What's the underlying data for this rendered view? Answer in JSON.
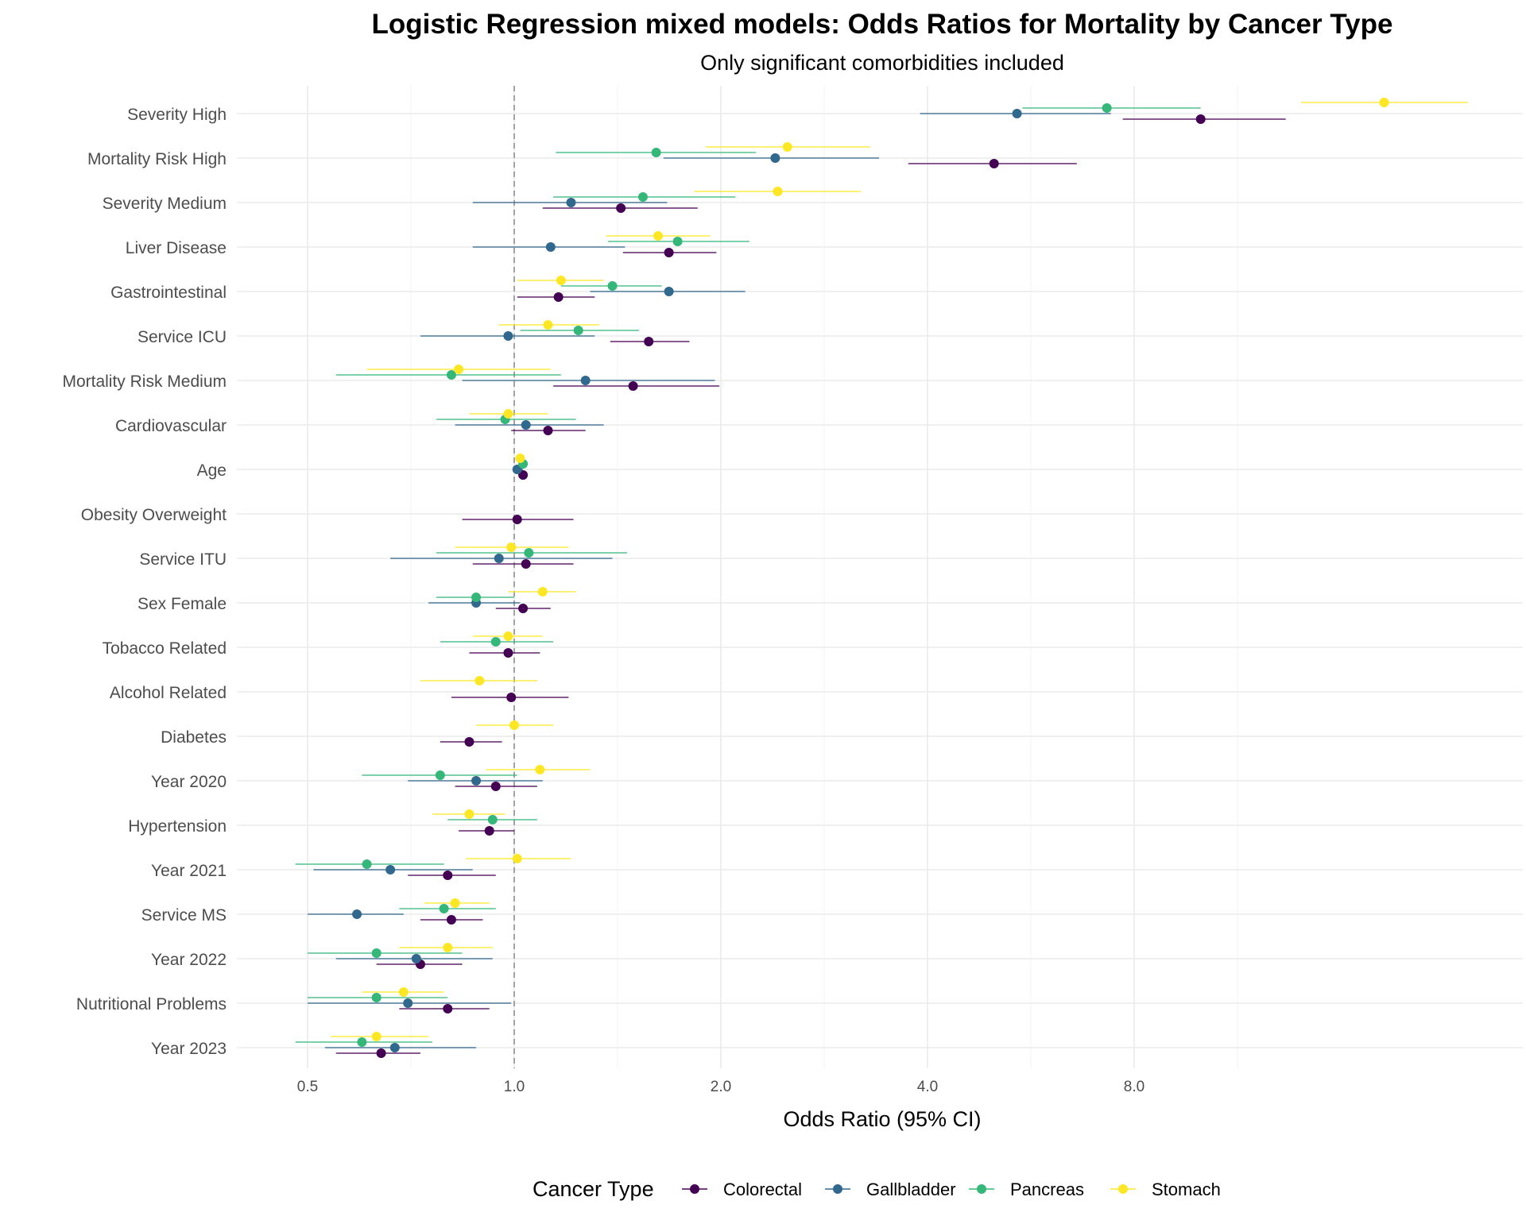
{
  "chart_data": {
    "type": "scatter",
    "title": "Logistic Regression mixed models: Odds Ratios for Mortality by Cancer Type",
    "subtitle": "Only significant comorbidities included",
    "xlabel": "Odds Ratio (95% CI)",
    "ylabel": "",
    "x_scale": "log2",
    "xlim": [
      0.42,
      28
    ],
    "x_ticks": [
      0.5,
      1.0,
      2.0,
      4.0,
      8.0
    ],
    "x_tick_labels": [
      "0.5",
      "1.0",
      "2.0",
      "4.0",
      "8.0"
    ],
    "reference_line": 1.0,
    "grid": true,
    "legend": {
      "title": "Cancer Type",
      "position": "bottom"
    },
    "categories": [
      "Severity High",
      "Mortality Risk High",
      "Severity Medium",
      "Liver Disease",
      "Gastrointestinal",
      "Service ICU",
      "Mortality Risk Medium",
      "Cardiovascular",
      "Age",
      "Obesity Overweight",
      "Service ITU",
      "Sex Female",
      "Tobacco Related",
      "Alcohol Related",
      "Diabetes",
      "Year 2020",
      "Hypertension",
      "Year 2021",
      "Service MS",
      "Year 2022",
      "Nutritional Problems",
      "Year 2023"
    ],
    "series": [
      {
        "name": "Colorectal",
        "color": "#440154",
        "points": [
          {
            "category": "Severity High",
            "or": 10.0,
            "lo": 7.7,
            "hi": 13.3
          },
          {
            "category": "Mortality Risk High",
            "or": 5.0,
            "lo": 3.75,
            "hi": 6.6
          },
          {
            "category": "Severity Medium",
            "or": 1.43,
            "lo": 1.1,
            "hi": 1.85
          },
          {
            "category": "Liver Disease",
            "or": 1.68,
            "lo": 1.44,
            "hi": 1.97
          },
          {
            "category": "Gastrointestinal",
            "or": 1.16,
            "lo": 1.01,
            "hi": 1.31
          },
          {
            "category": "Service ICU",
            "or": 1.57,
            "lo": 1.38,
            "hi": 1.8
          },
          {
            "category": "Mortality Risk Medium",
            "or": 1.49,
            "lo": 1.14,
            "hi": 1.99
          },
          {
            "category": "Cardiovascular",
            "or": 1.12,
            "lo": 0.99,
            "hi": 1.27
          },
          {
            "category": "Age",
            "or": 1.03,
            "lo": 1.02,
            "hi": 1.04
          },
          {
            "category": "Obesity Overweight",
            "or": 1.01,
            "lo": 0.84,
            "hi": 1.22
          },
          {
            "category": "Service ITU",
            "or": 1.04,
            "lo": 0.87,
            "hi": 1.22
          },
          {
            "category": "Sex Female",
            "or": 1.03,
            "lo": 0.94,
            "hi": 1.13
          },
          {
            "category": "Tobacco Related",
            "or": 0.98,
            "lo": 0.86,
            "hi": 1.09
          },
          {
            "category": "Alcohol Related",
            "or": 0.99,
            "lo": 0.81,
            "hi": 1.2
          },
          {
            "category": "Diabetes",
            "or": 0.86,
            "lo": 0.78,
            "hi": 0.96
          },
          {
            "category": "Year 2020",
            "or": 0.94,
            "lo": 0.82,
            "hi": 1.08
          },
          {
            "category": "Hypertension",
            "or": 0.92,
            "lo": 0.83,
            "hi": 1.0
          },
          {
            "category": "Year 2021",
            "or": 0.8,
            "lo": 0.7,
            "hi": 0.94
          },
          {
            "category": "Service MS",
            "or": 0.81,
            "lo": 0.73,
            "hi": 0.9
          },
          {
            "category": "Year 2022",
            "or": 0.73,
            "lo": 0.63,
            "hi": 0.84
          },
          {
            "category": "Nutritional Problems",
            "or": 0.8,
            "lo": 0.68,
            "hi": 0.92
          },
          {
            "category": "Year 2023",
            "or": 0.64,
            "lo": 0.55,
            "hi": 0.73
          }
        ]
      },
      {
        "name": "Gallbladder",
        "color": "#31688e",
        "points": [
          {
            "category": "Severity High",
            "or": 5.4,
            "lo": 3.9,
            "hi": 7.4
          },
          {
            "category": "Mortality Risk High",
            "or": 2.4,
            "lo": 1.65,
            "hi": 3.4
          },
          {
            "category": "Severity Medium",
            "or": 1.21,
            "lo": 0.87,
            "hi": 1.67
          },
          {
            "category": "Liver Disease",
            "or": 1.13,
            "lo": 0.87,
            "hi": 1.45
          },
          {
            "category": "Gastrointestinal",
            "or": 1.68,
            "lo": 1.29,
            "hi": 2.17
          },
          {
            "category": "Service ICU",
            "or": 0.98,
            "lo": 0.73,
            "hi": 1.31
          },
          {
            "category": "Mortality Risk Medium",
            "or": 1.27,
            "lo": 0.84,
            "hi": 1.96
          },
          {
            "category": "Cardiovascular",
            "or": 1.04,
            "lo": 0.82,
            "hi": 1.35
          },
          {
            "category": "Age",
            "or": 1.01,
            "lo": 1.0,
            "hi": 1.03
          },
          {
            "category": "Service ITU",
            "or": 0.95,
            "lo": 0.66,
            "hi": 1.39
          },
          {
            "category": "Sex Female",
            "or": 0.88,
            "lo": 0.75,
            "hi": 1.02
          },
          {
            "category": "Year 2020",
            "or": 0.88,
            "lo": 0.7,
            "hi": 1.1
          },
          {
            "category": "Year 2021",
            "or": 0.66,
            "lo": 0.51,
            "hi": 0.87
          },
          {
            "category": "Service MS",
            "or": 0.59,
            "lo": 0.5,
            "hi": 0.69
          },
          {
            "category": "Year 2022",
            "or": 0.72,
            "lo": 0.55,
            "hi": 0.93
          },
          {
            "category": "Nutritional Problems",
            "or": 0.7,
            "lo": 0.5,
            "hi": 0.99
          },
          {
            "category": "Year 2023",
            "or": 0.67,
            "lo": 0.53,
            "hi": 0.88
          }
        ]
      },
      {
        "name": "Pancreas",
        "color": "#35b779",
        "points": [
          {
            "category": "Severity High",
            "or": 7.3,
            "lo": 5.5,
            "hi": 10.0
          },
          {
            "category": "Mortality Risk High",
            "or": 1.61,
            "lo": 1.15,
            "hi": 2.25
          },
          {
            "category": "Severity Medium",
            "or": 1.54,
            "lo": 1.14,
            "hi": 2.1
          },
          {
            "category": "Liver Disease",
            "or": 1.73,
            "lo": 1.37,
            "hi": 2.2
          },
          {
            "category": "Gastrointestinal",
            "or": 1.39,
            "lo": 1.17,
            "hi": 1.64
          },
          {
            "category": "Service ICU",
            "or": 1.24,
            "lo": 1.02,
            "hi": 1.52
          },
          {
            "category": "Mortality Risk Medium",
            "or": 0.81,
            "lo": 0.55,
            "hi": 1.17
          },
          {
            "category": "Cardiovascular",
            "or": 0.97,
            "lo": 0.77,
            "hi": 1.23
          },
          {
            "category": "Age",
            "or": 1.03,
            "lo": 1.02,
            "hi": 1.04
          },
          {
            "category": "Service ITU",
            "or": 1.05,
            "lo": 0.77,
            "hi": 1.46
          },
          {
            "category": "Sex Female",
            "or": 0.88,
            "lo": 0.77,
            "hi": 1.0
          },
          {
            "category": "Tobacco Related",
            "or": 0.94,
            "lo": 0.78,
            "hi": 1.14
          },
          {
            "category": "Year 2020",
            "or": 0.78,
            "lo": 0.6,
            "hi": 1.01
          },
          {
            "category": "Hypertension",
            "or": 0.93,
            "lo": 0.8,
            "hi": 1.08
          },
          {
            "category": "Year 2021",
            "or": 0.61,
            "lo": 0.48,
            "hi": 0.79
          },
          {
            "category": "Service MS",
            "or": 0.79,
            "lo": 0.68,
            "hi": 0.94
          },
          {
            "category": "Year 2022",
            "or": 0.63,
            "lo": 0.5,
            "hi": 0.84
          },
          {
            "category": "Nutritional Problems",
            "or": 0.63,
            "lo": 0.5,
            "hi": 0.8
          },
          {
            "category": "Year 2023",
            "or": 0.6,
            "lo": 0.48,
            "hi": 0.76
          }
        ]
      },
      {
        "name": "Stomach",
        "color": "#fde725",
        "points": [
          {
            "category": "Severity High",
            "or": 18.5,
            "lo": 14.0,
            "hi": 24.5
          },
          {
            "category": "Mortality Risk High",
            "or": 2.5,
            "lo": 1.9,
            "hi": 3.3
          },
          {
            "category": "Severity Medium",
            "or": 2.42,
            "lo": 1.83,
            "hi": 3.2
          },
          {
            "category": "Liver Disease",
            "or": 1.62,
            "lo": 1.36,
            "hi": 1.93
          },
          {
            "category": "Gastrointestinal",
            "or": 1.17,
            "lo": 1.01,
            "hi": 1.35
          },
          {
            "category": "Service ICU",
            "or": 1.12,
            "lo": 0.95,
            "hi": 1.33
          },
          {
            "category": "Mortality Risk Medium",
            "or": 0.83,
            "lo": 0.61,
            "hi": 1.13
          },
          {
            "category": "Cardiovascular",
            "or": 0.98,
            "lo": 0.86,
            "hi": 1.12
          },
          {
            "category": "Age",
            "or": 1.02,
            "lo": 1.01,
            "hi": 1.03
          },
          {
            "category": "Service ITU",
            "or": 0.99,
            "lo": 0.82,
            "hi": 1.2
          },
          {
            "category": "Sex Female",
            "or": 1.1,
            "lo": 0.98,
            "hi": 1.23
          },
          {
            "category": "Tobacco Related",
            "or": 0.98,
            "lo": 0.87,
            "hi": 1.1
          },
          {
            "category": "Alcohol Related",
            "or": 0.89,
            "lo": 0.73,
            "hi": 1.08
          },
          {
            "category": "Diabetes",
            "or": 1.0,
            "lo": 0.88,
            "hi": 1.14
          },
          {
            "category": "Year 2020",
            "or": 1.09,
            "lo": 0.91,
            "hi": 1.29
          },
          {
            "category": "Hypertension",
            "or": 0.86,
            "lo": 0.76,
            "hi": 0.97
          },
          {
            "category": "Year 2021",
            "or": 1.01,
            "lo": 0.85,
            "hi": 1.21
          },
          {
            "category": "Service MS",
            "or": 0.82,
            "lo": 0.74,
            "hi": 0.92
          },
          {
            "category": "Year 2022",
            "or": 0.8,
            "lo": 0.68,
            "hi": 0.93
          },
          {
            "category": "Nutritional Problems",
            "or": 0.69,
            "lo": 0.6,
            "hi": 0.79
          },
          {
            "category": "Year 2023",
            "or": 0.63,
            "lo": 0.54,
            "hi": 0.75
          }
        ]
      }
    ]
  }
}
